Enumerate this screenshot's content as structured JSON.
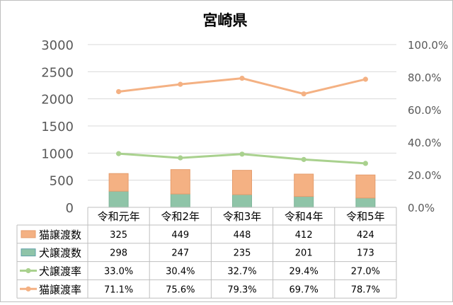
{
  "chart_data": {
    "type": "bar",
    "title": "宮崎県",
    "categories": [
      "令和元年",
      "令和2年",
      "令和3年",
      "令和4年",
      "令和5年"
    ],
    "series": [
      {
        "name": "猫譲渡数",
        "kind": "bar",
        "stack": "bottom-top",
        "axis": "left",
        "values": [
          325,
          449,
          448,
          412,
          424
        ],
        "display": [
          "325",
          "449",
          "448",
          "412",
          "424"
        ],
        "color": "#F4B183"
      },
      {
        "name": "犬譲渡数",
        "kind": "bar",
        "stack": "bottom",
        "axis": "left",
        "values": [
          298,
          247,
          235,
          201,
          173
        ],
        "display": [
          "298",
          "247",
          "235",
          "201",
          "173"
        ],
        "color": "#8FC4A8"
      },
      {
        "name": "犬譲渡率",
        "kind": "line",
        "axis": "right",
        "values": [
          33.0,
          30.4,
          32.7,
          29.4,
          27.0
        ],
        "display": [
          "33.0%",
          "30.4%",
          "32.7%",
          "29.4%",
          "27.0%"
        ],
        "color": "#A9D18E"
      },
      {
        "name": "猫譲渡率",
        "kind": "line",
        "axis": "right",
        "values": [
          71.1,
          75.6,
          79.3,
          69.7,
          78.7
        ],
        "display": [
          "71.1%",
          "75.6%",
          "79.3%",
          "69.7%",
          "78.7%"
        ],
        "color": "#F4B183"
      }
    ],
    "left_axis": {
      "min": 0,
      "max": 3000,
      "ticks": [
        "0",
        "500",
        "1000",
        "1500",
        "2000",
        "2500",
        "3000"
      ]
    },
    "right_axis": {
      "min": 0,
      "max": 100,
      "ticks": [
        "0.0%",
        "20.0%",
        "40.0%",
        "60.0%",
        "80.0%",
        "100.0%"
      ]
    },
    "gridlines": true,
    "legend": "data-table"
  }
}
